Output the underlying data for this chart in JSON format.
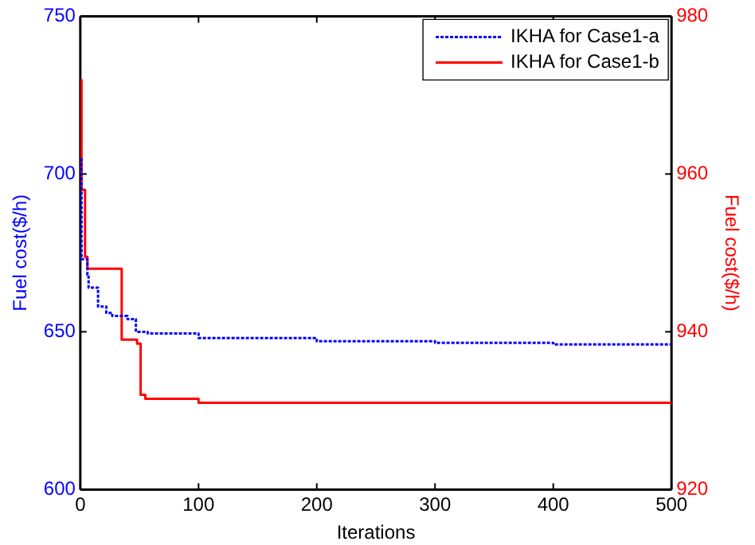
{
  "chart_data": {
    "type": "step",
    "xlabel": "Iterations",
    "ylabel": "Fuel cost($/h)",
    "y2label": "Fuel cost($/h)",
    "xlim": [
      0,
      500
    ],
    "xticks": [
      0,
      100,
      200,
      300,
      400,
      500
    ],
    "ylim": [
      600,
      750
    ],
    "yticks": [
      600,
      650,
      700,
      750
    ],
    "y2lim": [
      920,
      980
    ],
    "y2ticks": [
      920,
      940,
      960,
      980
    ],
    "grid": false,
    "legend": "top right",
    "marker": "none",
    "series": [
      {
        "name": "IKHA for Case1-a",
        "color": "#0000ff",
        "line_style": "dotted",
        "x": [
          1,
          6,
          7,
          15,
          22,
          27,
          40,
          47,
          57,
          100,
          200,
          300,
          400,
          500
        ],
        "values": [
          705,
          673,
          668,
          664,
          658,
          656,
          655,
          654,
          650,
          649.5,
          648,
          647,
          646.5,
          646
        ]
      },
      {
        "name": "IKHA for Case1-b",
        "color": "#ff0000",
        "line_style": "solid",
        "axis": "y2",
        "x": [
          1,
          4,
          6,
          35,
          48,
          51,
          55,
          100,
          150,
          500
        ],
        "values": [
          972,
          958,
          949.5,
          948,
          939,
          938.5,
          932,
          931.5,
          931,
          931
        ]
      }
    ]
  }
}
